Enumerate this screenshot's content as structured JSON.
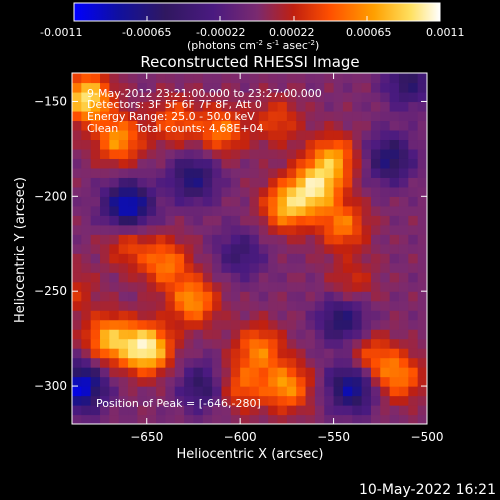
{
  "colorbar": {
    "ticks": [
      "-0.0011",
      "-0.00065",
      "-0.00022",
      "0.00022",
      "0.00065",
      "0.0011"
    ],
    "units_main": "(photons cm",
    "units_exp1": "-2",
    "units_mid": " s",
    "units_exp2": "-1",
    "units_mid2": " asec",
    "units_exp3": "-2",
    "units_end": ")"
  },
  "colors": {
    "background": "#000000",
    "axis": "#ffffff",
    "colormap": [
      "#0000ff",
      "#1010a0",
      "#301860",
      "#4a1a80",
      "#7a2a70",
      "#c02010",
      "#ff5000",
      "#ffa000",
      "#ffe060",
      "#ffffff"
    ]
  },
  "info": {
    "line1": "9-May-2012 23:21:00.000 to 23:27:00.000",
    "line2": "Detectors: 3F 5F 6F 7F 8F, Att 0",
    "line3": "Energy Range: 25.0 - 50.0 keV",
    "line4": "Clean     Total counts: 4.68E+04",
    "peak": "Position of Peak = [-646,-280]"
  },
  "footer": {
    "date": "10-May-2022 16:21"
  },
  "chart_data": {
    "type": "heatmap",
    "title": "Reconstructed RHESSI Image",
    "xlabel": "Heliocentric X (arcsec)",
    "ylabel": "Heliocentric Y (arcsec)",
    "xlim": [
      -690,
      -500
    ],
    "ylim": [
      -320,
      -135
    ],
    "x_ticks": [
      -650,
      -600,
      -550,
      -500
    ],
    "y_ticks": [
      -150,
      -200,
      -250,
      -300
    ],
    "x_tick_labels": [
      "−650",
      "−600",
      "−550",
      "−500"
    ],
    "y_tick_labels": [
      "−150",
      "−200",
      "−250",
      "−300"
    ],
    "colorbar_range": [
      -0.0011,
      0.0011
    ],
    "peak_position": [
      -646,
      -280
    ],
    "hotspots": [
      {
        "x": -650,
        "y": -280,
        "value": 0.0011
      },
      {
        "x": -670,
        "y": -275,
        "value": 0.0008
      },
      {
        "x": -682,
        "y": -148,
        "value": 0.001
      },
      {
        "x": -665,
        "y": -170,
        "value": 0.0007
      },
      {
        "x": -560,
        "y": -195,
        "value": 0.0009
      },
      {
        "x": -575,
        "y": -205,
        "value": 0.0008
      },
      {
        "x": -550,
        "y": -180,
        "value": 0.0007
      },
      {
        "x": -545,
        "y": -215,
        "value": 0.0006
      },
      {
        "x": -610,
        "y": -165,
        "value": 0.0006
      },
      {
        "x": -635,
        "y": -160,
        "value": 0.0005
      },
      {
        "x": -640,
        "y": -235,
        "value": 0.0006
      },
      {
        "x": -625,
        "y": -255,
        "value": 0.0007
      },
      {
        "x": -590,
        "y": -280,
        "value": 0.0006
      },
      {
        "x": -575,
        "y": -300,
        "value": 0.0007
      },
      {
        "x": -530,
        "y": -285,
        "value": 0.0005
      },
      {
        "x": -515,
        "y": -295,
        "value": 0.0006
      },
      {
        "x": -660,
        "y": -225,
        "value": 0.0004
      },
      {
        "x": -600,
        "y": -300,
        "value": 0.0005
      },
      {
        "x": -690,
        "y": -250,
        "value": 0.0003
      },
      {
        "x": -540,
        "y": -245,
        "value": 0.0003
      },
      {
        "x": -580,
        "y": -160,
        "value": 0.0004
      }
    ],
    "coldspots": [
      {
        "x": -660,
        "y": -205,
        "value": -0.0009
      },
      {
        "x": -685,
        "y": -300,
        "value": -0.0009
      },
      {
        "x": -540,
        "y": -300,
        "value": -0.0008
      },
      {
        "x": -625,
        "y": -190,
        "value": -0.0006
      },
      {
        "x": -520,
        "y": -180,
        "value": -0.0006
      },
      {
        "x": -600,
        "y": -230,
        "value": -0.0004
      },
      {
        "x": -545,
        "y": -265,
        "value": -0.0006
      },
      {
        "x": -510,
        "y": -140,
        "value": -0.0005
      },
      {
        "x": -620,
        "y": -300,
        "value": -0.0005
      }
    ]
  }
}
